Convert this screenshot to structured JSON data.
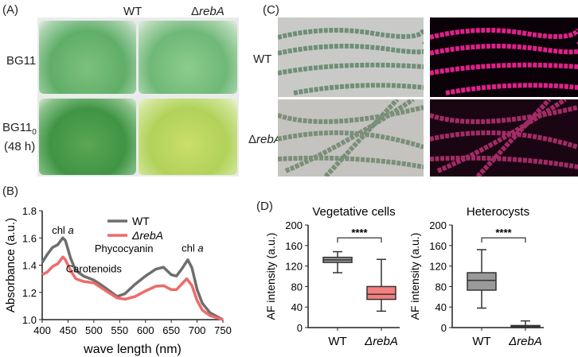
{
  "panelA": {
    "label": "(A)",
    "col_wt": "WT",
    "col_mut_prefix": "Δ",
    "col_mut": "rebA",
    "row1": "BG11",
    "row2_main": "BG11",
    "row2_sub": "0",
    "row2_time": "(48 h)"
  },
  "panelC": {
    "label": "(C)",
    "row_wt": "WT",
    "row_mut_prefix": "Δ",
    "row_mut": "rebA"
  },
  "panelB": {
    "label": "(B)"
  },
  "panelD": {
    "label": "(D)"
  },
  "colors": {
    "wt": "#6e6e6e",
    "mut": "#f06a6a",
    "wt_box": "#9a9a9a",
    "mut_box": "#f47f7f"
  },
  "chart_data": [
    {
      "type": "line",
      "title": "",
      "xlabel": "wave length (nm)",
      "ylabel": "Absorbance (a.u.)",
      "xlim": [
        400,
        750
      ],
      "ylim": [
        1.0,
        1.8
      ],
      "xticks": [
        "400",
        "450",
        "500",
        "550",
        "600",
        "650",
        "700",
        "750"
      ],
      "yticks": [
        "1.0",
        "1.2",
        "1.4",
        "1.6",
        "1.8"
      ],
      "legend": "top-center",
      "annotations": [
        {
          "text": "chl ",
          "italic": "a",
          "x": 440,
          "y": 1.63
        },
        {
          "text": "Carotenoids",
          "x": 500,
          "y": 1.36
        },
        {
          "text": "Phycocyanin",
          "x": 620,
          "y": 1.45
        },
        {
          "text": "chl ",
          "italic": "a",
          "x": 682,
          "y": 1.47
        }
      ],
      "series": [
        {
          "name": "WT",
          "x": [
            400,
            410,
            420,
            430,
            440,
            445,
            455,
            465,
            480,
            500,
            520,
            545,
            560,
            580,
            600,
            620,
            635,
            650,
            660,
            670,
            682,
            690,
            700,
            710,
            725,
            750
          ],
          "y": [
            1.42,
            1.48,
            1.53,
            1.55,
            1.6,
            1.58,
            1.45,
            1.36,
            1.32,
            1.29,
            1.24,
            1.17,
            1.19,
            1.26,
            1.32,
            1.37,
            1.385,
            1.33,
            1.32,
            1.37,
            1.44,
            1.38,
            1.22,
            1.12,
            1.05,
            1.0
          ]
        },
        {
          "name": "ΔrebA",
          "x": [
            400,
            410,
            420,
            430,
            440,
            445,
            455,
            465,
            480,
            500,
            520,
            545,
            560,
            580,
            600,
            620,
            635,
            650,
            660,
            670,
            680,
            690,
            700,
            710,
            725,
            750
          ],
          "y": [
            1.33,
            1.35,
            1.39,
            1.41,
            1.46,
            1.44,
            1.36,
            1.3,
            1.28,
            1.27,
            1.22,
            1.16,
            1.15,
            1.17,
            1.21,
            1.245,
            1.25,
            1.22,
            1.22,
            1.26,
            1.3,
            1.25,
            1.14,
            1.07,
            1.03,
            1.0
          ]
        }
      ]
    },
    {
      "type": "box",
      "title": "Vegetative cells",
      "ylabel": "AF intensity (a.u.)",
      "ylim": [
        0,
        200
      ],
      "yticks": [
        "0",
        "40",
        "80",
        "120",
        "160",
        "200"
      ],
      "significance": "****",
      "categories": [
        "WT",
        "ΔrebA"
      ],
      "boxes": [
        {
          "min": 107,
          "q1": 127,
          "median": 132,
          "q3": 137,
          "max": 148
        },
        {
          "min": 32,
          "q1": 55,
          "median": 65,
          "q3": 80,
          "max": 133
        }
      ]
    },
    {
      "type": "box",
      "title": "Heterocysts",
      "ylabel": "AF intensity (a.u.)",
      "ylim": [
        0,
        200
      ],
      "yticks": [
        "0",
        "40",
        "80",
        "120",
        "160",
        "200"
      ],
      "significance": "****",
      "categories": [
        "WT",
        "ΔrebA"
      ],
      "boxes": [
        {
          "min": 38,
          "q1": 73,
          "median": 92,
          "q3": 107,
          "max": 152
        },
        {
          "min": 0,
          "q1": 0,
          "median": 2,
          "q3": 4,
          "max": 13
        }
      ]
    }
  ]
}
